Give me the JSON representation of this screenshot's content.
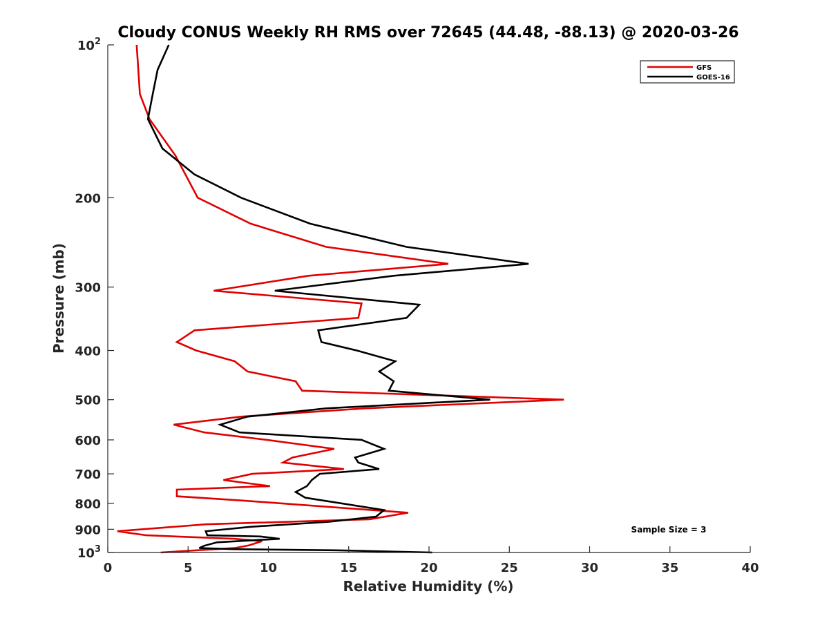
{
  "chart_data": {
    "type": "line",
    "title": "Cloudy CONUS Weekly RH RMS over 72645 (44.48, -88.13) @ 2020-03-26",
    "xlabel": "Relative Humidity (%)",
    "ylabel": "Pressure (mb)",
    "xlim": [
      0,
      40
    ],
    "ylim": [
      100,
      1000
    ],
    "y_scale": "log",
    "y_reversed": true,
    "grid": false,
    "legend_position": "top-right",
    "x_ticks": [
      {
        "value": 0,
        "label": "0"
      },
      {
        "value": 5,
        "label": "5"
      },
      {
        "value": 10,
        "label": "10"
      },
      {
        "value": 15,
        "label": "15"
      },
      {
        "value": 20,
        "label": "20"
      },
      {
        "value": 25,
        "label": "25"
      },
      {
        "value": 30,
        "label": "30"
      },
      {
        "value": 35,
        "label": "35"
      },
      {
        "value": 40,
        "label": "40"
      }
    ],
    "y_ticks": [
      {
        "value": 100,
        "label": "10",
        "sup": "2"
      },
      {
        "value": 200,
        "label": "200",
        "sup": ""
      },
      {
        "value": 300,
        "label": "300",
        "sup": ""
      },
      {
        "value": 400,
        "label": "400",
        "sup": ""
      },
      {
        "value": 500,
        "label": "500",
        "sup": ""
      },
      {
        "value": 600,
        "label": "600",
        "sup": ""
      },
      {
        "value": 700,
        "label": "700",
        "sup": ""
      },
      {
        "value": 800,
        "label": "800",
        "sup": ""
      },
      {
        "value": 900,
        "label": "900",
        "sup": ""
      },
      {
        "value": 1000,
        "label": "10",
        "sup": "3"
      }
    ],
    "series": [
      {
        "name": "GFS",
        "color": "#e00000",
        "points": [
          [
            1.8,
            100
          ],
          [
            1.9,
            112
          ],
          [
            2.0,
            125
          ],
          [
            2.6,
            140
          ],
          [
            4.2,
            165
          ],
          [
            5.6,
            200
          ],
          [
            8.9,
            225
          ],
          [
            13.6,
            250
          ],
          [
            21.2,
            270
          ],
          [
            12.5,
            285
          ],
          [
            6.6,
            305
          ],
          [
            15.8,
            323
          ],
          [
            15.6,
            345
          ],
          [
            5.4,
            365
          ],
          [
            4.3,
            385
          ],
          [
            5.5,
            400
          ],
          [
            7.9,
            420
          ],
          [
            8.7,
            440
          ],
          [
            11.7,
            460
          ],
          [
            12.1,
            480
          ],
          [
            28.4,
            500
          ],
          [
            16.0,
            520
          ],
          [
            8.3,
            540
          ],
          [
            4.1,
            560
          ],
          [
            6.0,
            580
          ],
          [
            9.9,
            600
          ],
          [
            14.1,
            625
          ],
          [
            11.5,
            650
          ],
          [
            10.9,
            665
          ],
          [
            14.7,
            685
          ],
          [
            9.0,
            700
          ],
          [
            7.2,
            720
          ],
          [
            10.1,
            740
          ],
          [
            4.3,
            752
          ],
          [
            4.3,
            775
          ],
          [
            8.4,
            790
          ],
          [
            18.7,
            835
          ],
          [
            16.3,
            860
          ],
          [
            6.1,
            880
          ],
          [
            0.6,
            908
          ],
          [
            2.4,
            925
          ],
          [
            7.9,
            940
          ],
          [
            9.6,
            950
          ],
          [
            8.8,
            968
          ],
          [
            7.9,
            980
          ],
          [
            3.3,
            1000
          ]
        ]
      },
      {
        "name": "GOES-16",
        "color": "#000000",
        "points": [
          [
            3.8,
            100
          ],
          [
            3.1,
            112
          ],
          [
            2.8,
            125
          ],
          [
            2.5,
            140
          ],
          [
            3.4,
            160
          ],
          [
            5.4,
            180
          ],
          [
            8.3,
            200
          ],
          [
            12.6,
            225
          ],
          [
            18.6,
            250
          ],
          [
            26.2,
            270
          ],
          [
            17.8,
            285
          ],
          [
            10.4,
            305
          ],
          [
            19.4,
            325
          ],
          [
            18.6,
            345
          ],
          [
            13.1,
            365
          ],
          [
            13.3,
            385
          ],
          [
            15.5,
            400
          ],
          [
            17.9,
            420
          ],
          [
            16.9,
            440
          ],
          [
            17.8,
            460
          ],
          [
            17.5,
            480
          ],
          [
            23.8,
            500
          ],
          [
            13.6,
            520
          ],
          [
            8.7,
            540
          ],
          [
            7.0,
            560
          ],
          [
            8.2,
            580
          ],
          [
            15.8,
            600
          ],
          [
            17.2,
            625
          ],
          [
            15.4,
            650
          ],
          [
            15.6,
            665
          ],
          [
            16.9,
            685
          ],
          [
            13.2,
            700
          ],
          [
            12.7,
            720
          ],
          [
            12.4,
            740
          ],
          [
            11.7,
            760
          ],
          [
            12.3,
            780
          ],
          [
            17.2,
            825
          ],
          [
            16.7,
            850
          ],
          [
            13.8,
            870
          ],
          [
            8.9,
            890
          ],
          [
            6.1,
            908
          ],
          [
            6.2,
            925
          ],
          [
            9.5,
            930
          ],
          [
            10.7,
            940
          ],
          [
            6.8,
            955
          ],
          [
            6.0,
            970
          ],
          [
            5.7,
            980
          ],
          [
            7.8,
            985
          ],
          [
            14.2,
            990
          ],
          [
            20.2,
            1000
          ]
        ]
      }
    ],
    "annotation": "Sample Size = 3"
  }
}
